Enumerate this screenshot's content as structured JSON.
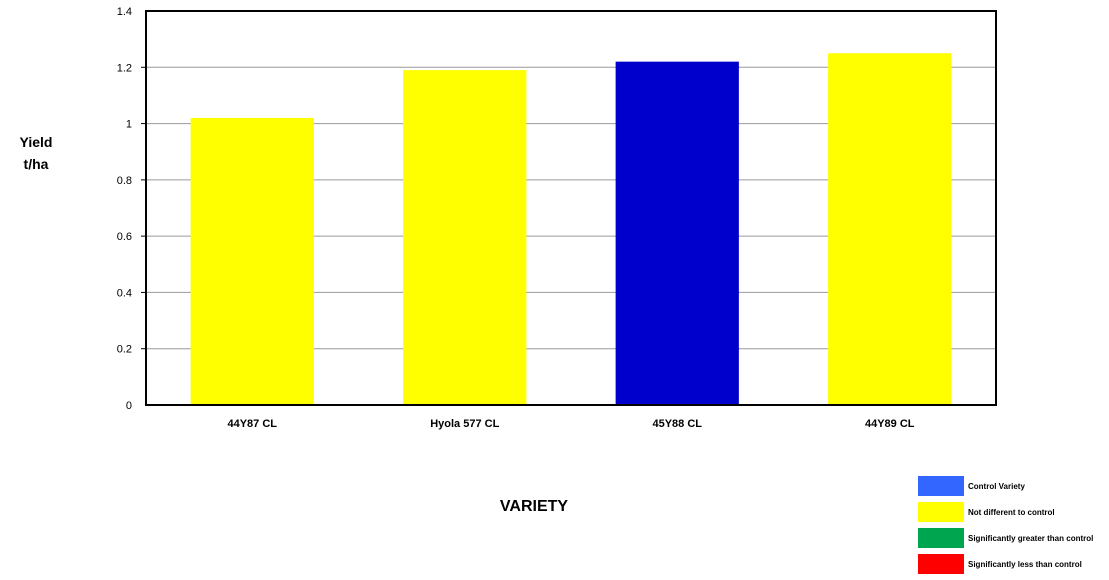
{
  "chart_data": {
    "type": "bar",
    "categories": [
      "44Y87 CL",
      "Hyola 577 CL",
      "45Y88 CL",
      "44Y89 CL"
    ],
    "values": [
      1.02,
      1.19,
      1.22,
      1.25
    ],
    "bar_colors": [
      "#ffff00",
      "#ffff00",
      "#0000cc",
      "#ffff00"
    ],
    "ylabel_lines": [
      "Yield",
      "t/ha"
    ],
    "xlabel": "VARIETY",
    "ylim": [
      0,
      1.4
    ],
    "yticks": [
      "0",
      "0.2",
      "0.4",
      "0.6",
      "0.8",
      "1",
      "1.2",
      "1.4"
    ],
    "ytick_values": [
      0,
      0.2,
      0.4,
      0.6,
      0.8,
      1,
      1.2,
      1.4
    ],
    "grid": true,
    "legend_position": "bottom-right",
    "legend": [
      {
        "label": "Control Variety",
        "color": "#3366ff"
      },
      {
        "label": "Not different to control",
        "color": "#ffff00"
      },
      {
        "label": "Significantly greater than control",
        "color": "#00a550"
      },
      {
        "label": "Significantly less than control",
        "color": "#ff0000"
      }
    ]
  }
}
